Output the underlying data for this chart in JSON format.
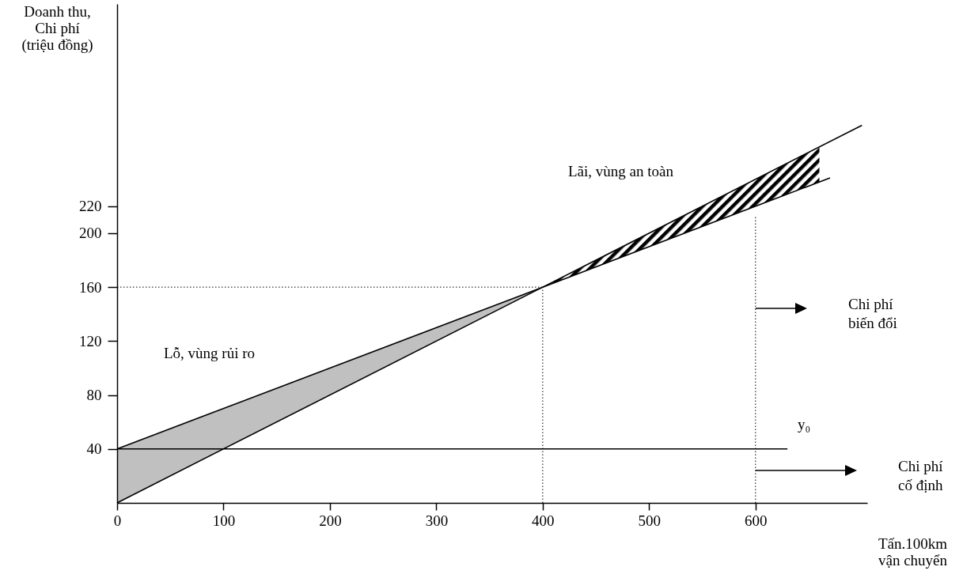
{
  "chart_data": {
    "type": "line",
    "xlabel": "Tấn.100km\nvận chuyển",
    "ylabel": "Doanh thu,\nChi phí\n(triệu đồng)",
    "xlim": [
      0,
      705
    ],
    "ylim": [
      0,
      370
    ],
    "xticks": [
      0,
      100,
      200,
      300,
      400,
      500,
      600
    ],
    "yticks": [
      40,
      80,
      120,
      160,
      200,
      220
    ],
    "grid": false,
    "series": [
      {
        "color": "#000000",
        "x": [
          0,
          400,
          700
        ],
        "values": [
          0,
          160,
          280
        ]
      },
      {
        "color": "#000000",
        "x": [
          0,
          400,
          670
        ],
        "values": [
          40,
          160,
          241
        ]
      },
      {
        "color": "#000000",
        "x": [
          0,
          630
        ],
        "values": [
          40,
          40
        ]
      },
      {
        "color": "#000000",
        "line_style": "dotted",
        "x": [
          0,
          400
        ],
        "values": [
          160,
          160
        ]
      },
      {
        "color": "#000000",
        "line_style": "dotted",
        "x": [
          400,
          400
        ],
        "values": [
          0,
          160
        ]
      },
      {
        "color": "#000000",
        "line_style": "dotted",
        "x": [
          600,
          600
        ],
        "values": [
          0,
          213
        ]
      }
    ],
    "annotations": [
      "Lãi, vùng an toàn",
      "Lỗ, vùng rủi ro",
      "y₀",
      "Chi phí\nbiến đổi",
      "Chi phí\ncố định"
    ]
  }
}
